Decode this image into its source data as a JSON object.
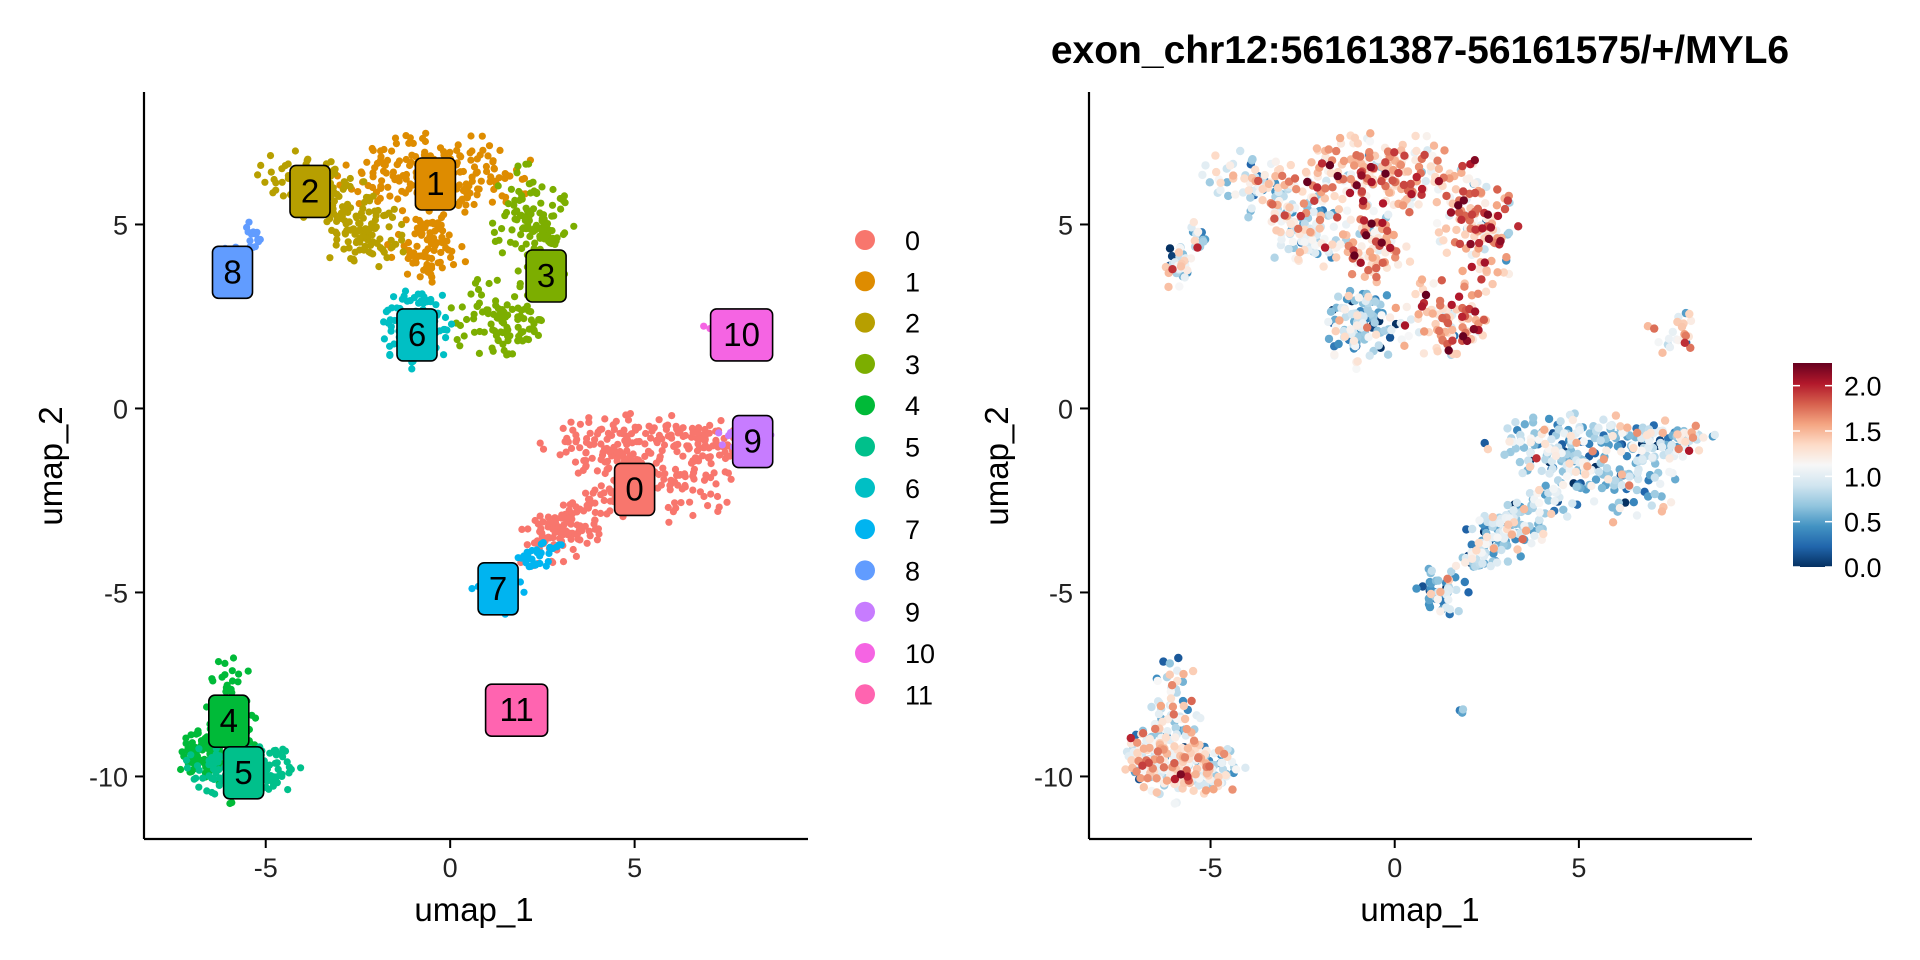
{
  "chart_data": [
    {
      "type": "scatter",
      "panel": "clusters",
      "title": "",
      "xlabel": "umap_1",
      "ylabel": "umap_2",
      "xlim": [
        -8.3,
        9.7
      ],
      "ylim": [
        -11.7,
        8.6
      ],
      "x_ticks": [
        -5,
        0,
        5
      ],
      "y_ticks": [
        -10,
        -5,
        0,
        5
      ],
      "x_tick_labels": [
        "-5",
        "0",
        "5"
      ],
      "y_tick_labels": [
        "-10",
        "-5",
        "0",
        "5"
      ],
      "legend_position": "right",
      "legend": [
        {
          "label": "0",
          "color": "#F8766D"
        },
        {
          "label": "1",
          "color": "#DE8C00"
        },
        {
          "label": "2",
          "color": "#B79F00"
        },
        {
          "label": "3",
          "color": "#7CAE00"
        },
        {
          "label": "4",
          "color": "#00BA38"
        },
        {
          "label": "5",
          "color": "#00C08B"
        },
        {
          "label": "6",
          "color": "#00BFC4"
        },
        {
          "label": "7",
          "color": "#00B4F0"
        },
        {
          "label": "8",
          "color": "#619CFF"
        },
        {
          "label": "9",
          "color": "#C77CFF"
        },
        {
          "label": "10",
          "color": "#F564E3"
        },
        {
          "label": "11",
          "color": "#FF64B0"
        }
      ],
      "cluster_labels": [
        {
          "label": "0",
          "x": 5.0,
          "y": -2.2
        },
        {
          "label": "1",
          "x": -0.4,
          "y": 6.1
        },
        {
          "label": "2",
          "x": -3.8,
          "y": 5.9
        },
        {
          "label": "3",
          "x": 2.6,
          "y": 3.6
        },
        {
          "label": "4",
          "x": -6.0,
          "y": -8.5
        },
        {
          "label": "5",
          "x": -5.6,
          "y": -9.9
        },
        {
          "label": "6",
          "x": -0.9,
          "y": 2.0
        },
        {
          "label": "7",
          "x": 1.3,
          "y": -4.9
        },
        {
          "label": "8",
          "x": -5.9,
          "y": 3.7
        },
        {
          "label": "9",
          "x": 8.2,
          "y": -0.9
        },
        {
          "label": "10",
          "x": 7.9,
          "y": 2.0
        },
        {
          "label": "11",
          "x": 1.8,
          "y": -8.2
        }
      ],
      "clusters": [
        {
          "id": "0",
          "n": 420,
          "shapes": [
            {
              "cx": 5.2,
              "cy": -1.5,
              "rx": 2.3,
              "ry": 1.1,
              "a": -0.35,
              "w": 0.55
            },
            {
              "cx": 3.2,
              "cy": -3.2,
              "rx": 1.5,
              "ry": 0.7,
              "a": 0.5,
              "w": 0.25
            },
            {
              "cx": 6.8,
              "cy": -0.8,
              "rx": 1.3,
              "ry": 0.5,
              "a": -0.15,
              "w": 0.2
            }
          ]
        },
        {
          "id": "1",
          "n": 300,
          "shapes": [
            {
              "cx": -0.5,
              "cy": 6.4,
              "rx": 2.2,
              "ry": 1.0,
              "a": 0.0,
              "w": 0.7
            },
            {
              "cx": -0.6,
              "cy": 4.4,
              "rx": 0.9,
              "ry": 0.8,
              "a": 0.0,
              "w": 0.3
            }
          ]
        },
        {
          "id": "2",
          "n": 190,
          "shapes": [
            {
              "cx": -3.6,
              "cy": 6.1,
              "rx": 1.3,
              "ry": 0.8,
              "a": -0.3,
              "w": 0.5
            },
            {
              "cx": -2.3,
              "cy": 4.7,
              "rx": 0.9,
              "ry": 1.0,
              "a": 0.0,
              "w": 0.5
            }
          ]
        },
        {
          "id": "3",
          "n": 230,
          "shapes": [
            {
              "cx": 2.3,
              "cy": 5.0,
              "rx": 0.9,
              "ry": 1.3,
              "a": 0.2,
              "w": 0.55
            },
            {
              "cx": 1.5,
              "cy": 2.4,
              "rx": 1.2,
              "ry": 1.0,
              "a": 0.0,
              "w": 0.45
            }
          ]
        },
        {
          "id": "4",
          "n": 170,
          "shapes": [
            {
              "cx": -5.9,
              "cy": -8.7,
              "rx": 0.6,
              "ry": 1.7,
              "a": 0.0,
              "w": 0.6
            },
            {
              "cx": -6.7,
              "cy": -9.4,
              "rx": 0.6,
              "ry": 0.6,
              "a": 0.0,
              "w": 0.4
            }
          ]
        },
        {
          "id": "5",
          "n": 180,
          "shapes": [
            {
              "cx": -5.6,
              "cy": -9.8,
              "rx": 1.4,
              "ry": 0.6,
              "a": 0.0,
              "w": 1.0
            }
          ]
        },
        {
          "id": "6",
          "n": 110,
          "shapes": [
            {
              "cx": -0.9,
              "cy": 2.3,
              "rx": 0.8,
              "ry": 1.0,
              "a": 0.0,
              "w": 1.0
            }
          ]
        },
        {
          "id": "7",
          "n": 85,
          "shapes": [
            {
              "cx": 1.3,
              "cy": -5.0,
              "rx": 0.6,
              "ry": 0.6,
              "a": 0.0,
              "w": 0.6
            },
            {
              "cx": 2.4,
              "cy": -4.0,
              "rx": 0.8,
              "ry": 0.35,
              "a": 0.6,
              "w": 0.4
            }
          ]
        },
        {
          "id": "8",
          "n": 50,
          "shapes": [
            {
              "cx": -5.9,
              "cy": 3.9,
              "rx": 0.4,
              "ry": 0.6,
              "a": 0.0,
              "w": 0.7
            },
            {
              "cx": -5.3,
              "cy": 4.7,
              "rx": 0.3,
              "ry": 0.4,
              "a": 0.0,
              "w": 0.3
            }
          ]
        },
        {
          "id": "9",
          "n": 28,
          "shapes": [
            {
              "cx": 8.0,
              "cy": -0.8,
              "rx": 0.6,
              "ry": 0.3,
              "a": 0.0,
              "w": 1.0
            }
          ]
        },
        {
          "id": "10",
          "n": 24,
          "shapes": [
            {
              "cx": 7.5,
              "cy": 2.0,
              "rx": 0.6,
              "ry": 0.6,
              "a": 0.9,
              "w": 1.0
            }
          ]
        },
        {
          "id": "11",
          "n": 3,
          "shapes": [
            {
              "cx": 1.8,
              "cy": -8.2,
              "rx": 0.08,
              "ry": 0.08,
              "a": 0.0,
              "w": 1.0
            }
          ]
        }
      ]
    },
    {
      "type": "scatter",
      "panel": "expression",
      "title": "exon_chr12:56161387-56161575/+/MYL6",
      "xlabel": "umap_1",
      "ylabel": "umap_2",
      "xlim": [
        -8.3,
        9.7
      ],
      "ylim": [
        -11.7,
        8.6
      ],
      "x_ticks": [
        -5,
        0,
        5
      ],
      "y_ticks": [
        -10,
        -5,
        0,
        5
      ],
      "x_tick_labels": [
        "-5",
        "0",
        "5"
      ],
      "y_tick_labels": [
        "-10",
        "-5",
        "0",
        "5"
      ],
      "color_scale": {
        "min": 0.0,
        "max": 2.25,
        "ticks": [
          "0.0",
          "0.5",
          "1.0",
          "1.5",
          "2.0"
        ],
        "tick_values": [
          0.0,
          0.5,
          1.0,
          1.5,
          2.0
        ],
        "colors": [
          "#053061",
          "#2166AC",
          "#4393C3",
          "#92C5DE",
          "#D1E5F0",
          "#F7F7F7",
          "#FDDBC7",
          "#F4A582",
          "#D6604D",
          "#B2182B",
          "#67001F"
        ],
        "legend_position": "right"
      },
      "mean_expression_by_cluster": {
        "0": 0.8,
        "1": 1.45,
        "2": 1.05,
        "3": 1.45,
        "4": 1.05,
        "5": 1.1,
        "6": 0.75,
        "7": 0.65,
        "8": 1.0,
        "9": 0.9,
        "10": 1.3,
        "11": 0.7
      }
    }
  ]
}
